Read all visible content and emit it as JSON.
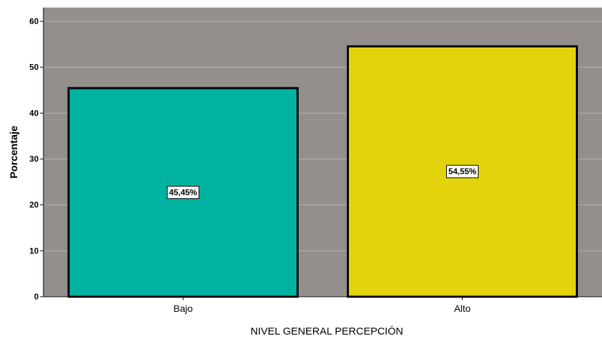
{
  "chart_data": {
    "type": "bar",
    "categories": [
      "Bajo",
      "Alto"
    ],
    "values": [
      45.45,
      54.55
    ],
    "data_labels": [
      "45,45%",
      "54,55%"
    ],
    "bar_colors": [
      "#00b2a0",
      "#e2d30d"
    ],
    "plot_background": "#948e8c",
    "xlabel": "NIVEL GENERAL PERCEPCIÓN",
    "ylabel": "Porcentaje",
    "ylim": [
      0,
      63
    ],
    "yticks": [
      0,
      10,
      20,
      30,
      40,
      50,
      60
    ],
    "grid": true
  }
}
